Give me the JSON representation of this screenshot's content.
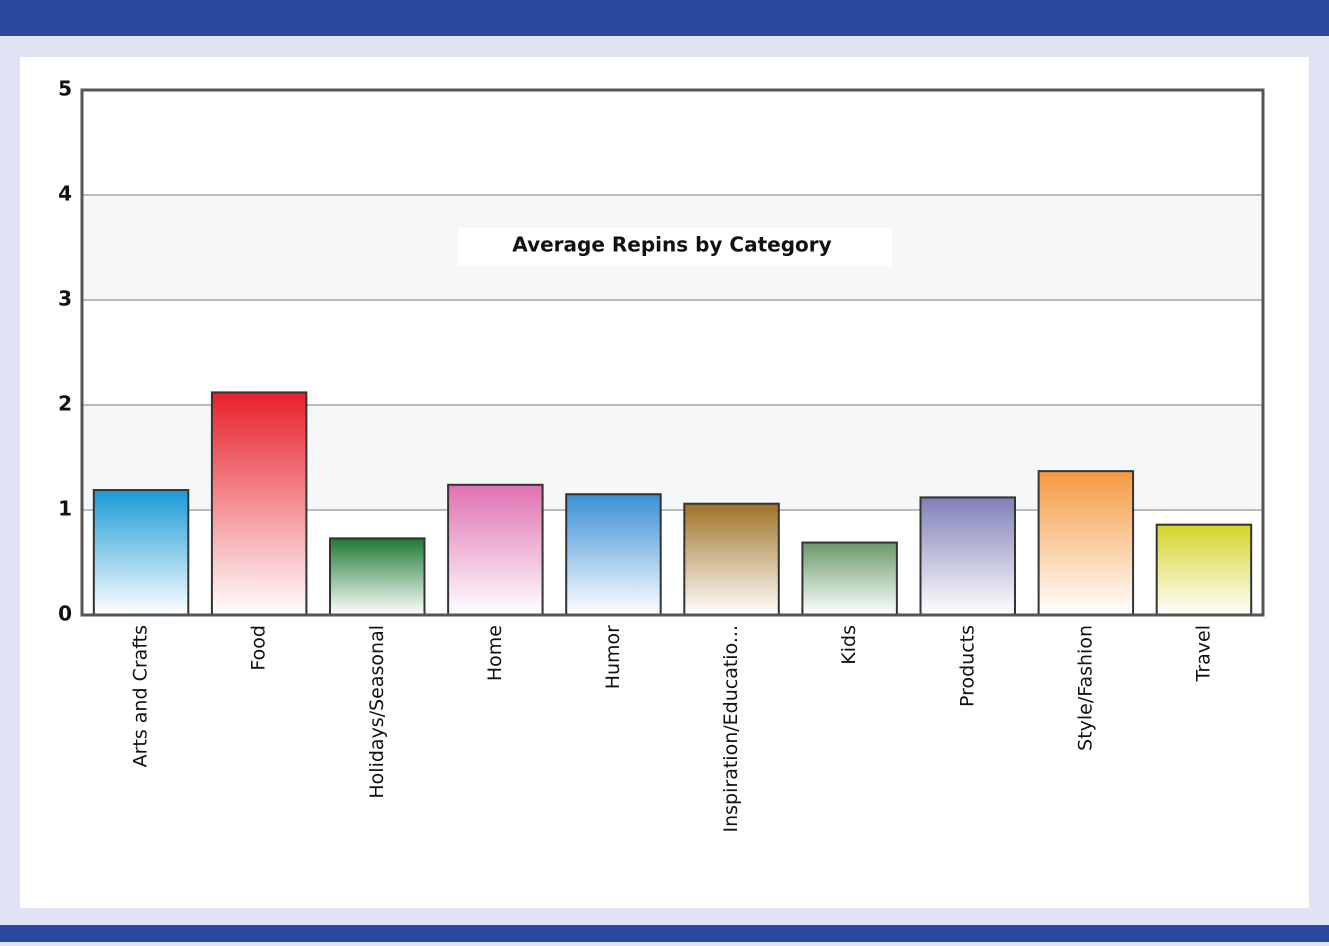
{
  "chart_data": {
    "type": "bar",
    "title": "Average Repins by Category",
    "categories": [
      "Arts and Crafts",
      "Food",
      "Holidays/Seasonal",
      "Home",
      "Humor",
      "Inspiration/Educatio...",
      "Kids",
      "Products",
      "Style/Fashion",
      "Travel"
    ],
    "values": [
      1.19,
      2.12,
      0.73,
      1.24,
      1.15,
      1.06,
      0.69,
      1.12,
      1.37,
      0.86
    ],
    "colors": [
      "#1a9ad6",
      "#e8202a",
      "#1e7a34",
      "#e070b0",
      "#3a8fd6",
      "#a07428",
      "#6a9a6a",
      "#8080b8",
      "#f59a40",
      "#d4d42a"
    ],
    "ylim": [
      0,
      5
    ],
    "yticks": [
      0,
      1,
      2,
      3,
      4,
      5
    ],
    "grid": true
  }
}
